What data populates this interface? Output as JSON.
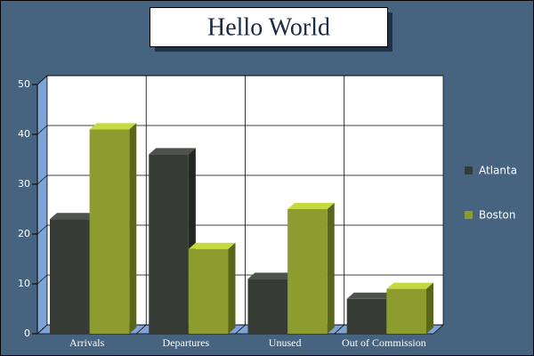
{
  "chart_data": {
    "type": "bar3d",
    "title": "Hello World",
    "categories": [
      "Arrivals",
      "Departures",
      "Unused",
      "Out of Commission"
    ],
    "series": [
      {
        "name": "Atlanta",
        "color": "#363b35",
        "values": [
          23,
          36,
          11,
          7
        ]
      },
      {
        "name": "Boston",
        "color": "#8c9c2e",
        "values": [
          41,
          17,
          25,
          9
        ]
      }
    ],
    "ylim": [
      0,
      50
    ],
    "yticks": [
      0,
      10,
      20,
      30,
      40,
      50
    ],
    "grid": true,
    "legend": "right"
  }
}
